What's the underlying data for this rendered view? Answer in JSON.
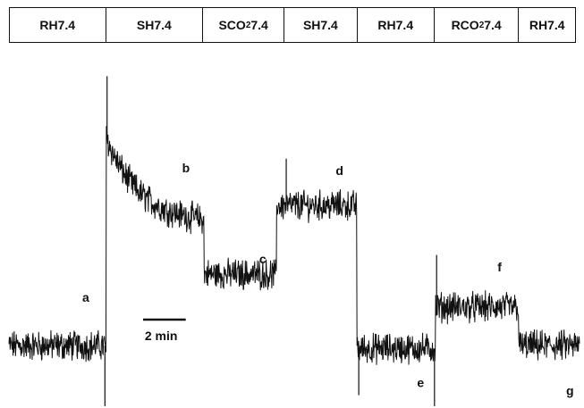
{
  "chart_data": {
    "type": "line",
    "segments": [
      {
        "prefix": "RH7.4",
        "sub": "",
        "suffix": ""
      },
      {
        "prefix": "SH7.4",
        "sub": "",
        "suffix": ""
      },
      {
        "prefix": "SCO",
        "sub": "2",
        "suffix": "7.4"
      },
      {
        "prefix": "SH7.4",
        "sub": "",
        "suffix": ""
      },
      {
        "prefix": "RH7.4",
        "sub": "",
        "suffix": ""
      },
      {
        "prefix": "RCO",
        "sub": "2",
        "suffix": "7.4"
      },
      {
        "prefix": "RH7.4",
        "sub": "",
        "suffix": ""
      }
    ],
    "segment_bounds_min": [
      0,
      4.55,
      9.15,
      13.0,
      16.45,
      20.1,
      24.1,
      26.75
    ],
    "trace_levels": [
      {
        "start": 0.0,
        "end": 4.55,
        "level": 0.1
      },
      {
        "start": 4.55,
        "end": 9.15,
        "level": 0.86,
        "decay_to": 0.56
      },
      {
        "start": 9.15,
        "end": 12.55,
        "level": 0.36
      },
      {
        "start": 12.55,
        "end": 16.3,
        "level": 0.61
      },
      {
        "start": 16.3,
        "end": 20.0,
        "level": 0.09
      },
      {
        "start": 20.0,
        "end": 23.9,
        "level": 0.24
      },
      {
        "start": 23.9,
        "end": 26.75,
        "level": 0.1
      }
    ],
    "annotations": [
      {
        "text": "a",
        "t": 3.6,
        "y": 0.26
      },
      {
        "text": "b",
        "t": 8.3,
        "y": 0.73
      },
      {
        "text": "c",
        "t": 11.9,
        "y": 0.4
      },
      {
        "text": "d",
        "t": 15.5,
        "y": 0.72
      },
      {
        "text": "e",
        "t": 19.3,
        "y": -0.05
      },
      {
        "text": "f",
        "t": 23.0,
        "y": 0.37
      },
      {
        "text": "g",
        "t": 26.3,
        "y": -0.08
      }
    ],
    "scale_bar": {
      "label": "2 min",
      "minutes": 2
    }
  }
}
